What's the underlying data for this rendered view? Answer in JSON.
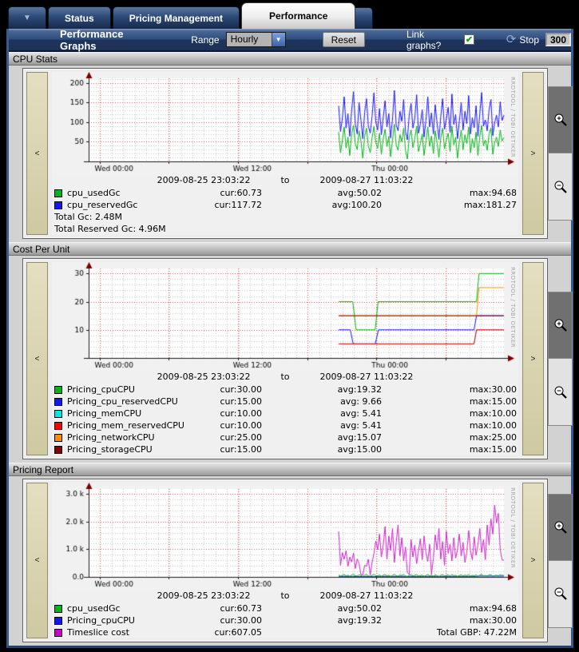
{
  "tabs": {
    "menu_icon": "▼",
    "items": [
      {
        "label": "Status"
      },
      {
        "label": "Pricing Management"
      },
      {
        "label": "Performance"
      }
    ],
    "active": "Performance"
  },
  "toolbar": {
    "title": "Performance Graphs",
    "range_label": "Range",
    "range_value": "Hourly",
    "reset_label": "Reset",
    "link_label": "Link graphs?",
    "link_checked": true,
    "stop_label": "Stop",
    "interval_value": "300"
  },
  "icons": {
    "nav_left": "<",
    "nav_right": ">",
    "check": "✔",
    "refresh": "⟳",
    "select_arrow": "▼"
  },
  "watermark": "RRDTOOL / TOBI OETIKER",
  "sections": [
    {
      "title": "CPU Stats",
      "date_from": "2009-08-25 23:03:22",
      "date_sep": "to",
      "date_to": "2009-08-27 11:03:22",
      "legend": [
        {
          "color": "#00b515",
          "name": "cpu_usedGc",
          "cur": "cur:60.73",
          "avg": "avg:50.02",
          "max": "max:94.68"
        },
        {
          "color": "#1414ff",
          "name": "cpu_reservedGc",
          "cur": "cur:117.72",
          "avg": "avg:100.20",
          "max": "max:181.27"
        }
      ],
      "footer": [
        "Total Gc:  2.48M",
        "Total Reserved Gc:  4.96M"
      ]
    },
    {
      "title": "Cost Per Unit",
      "date_from": "2009-08-25 23:03:22",
      "date_sep": "to",
      "date_to": "2009-08-27 11:03:22",
      "legend": [
        {
          "color": "#00b515",
          "name": "Pricing_cpuCPU",
          "cur": "cur:30.00",
          "avg": "avg:19.32",
          "max": "max:30.00"
        },
        {
          "color": "#1414ff",
          "name": "Pricing_cpu_reservedCPU",
          "cur": "cur:15.00",
          "avg": "avg: 9.66",
          "max": "max:15.00"
        },
        {
          "color": "#00e5e5",
          "name": "Pricing_memCPU",
          "cur": "cur:10.00",
          "avg": "avg: 5.41",
          "max": "max:10.00"
        },
        {
          "color": "#ff0000",
          "name": "Pricing_mem_reservedCPU",
          "cur": "cur:10.00",
          "avg": "avg: 5.41",
          "max": "max:10.00"
        },
        {
          "color": "#ff8c00",
          "name": "Pricing_networkCPU",
          "cur": "cur:25.00",
          "avg": "avg:15.07",
          "max": "max:25.00"
        },
        {
          "color": "#8b0000",
          "name": "Pricing_storageCPU",
          "cur": "cur:15.00",
          "avg": "avg:15.00",
          "max": "max:15.00"
        }
      ],
      "footer": []
    },
    {
      "title": "Pricing Report",
      "date_from": "2009-08-25 23:03:22",
      "date_sep": "to",
      "date_to": "2009-08-27 11:03:22",
      "legend": [
        {
          "color": "#00b515",
          "name": "cpu_usedGc",
          "cur": "cur:60.73",
          "avg": "avg:50.02",
          "max": "max:94.68"
        },
        {
          "color": "#1414ff",
          "name": "Pricing_cpuCPU",
          "cur": "cur:30.00",
          "avg": "avg:19.32",
          "max": "max:30.00"
        },
        {
          "color": "#cc00cc",
          "name": "Timeslice cost",
          "cur": "cur:607.05",
          "avg": "",
          "max": "Total GBP: 47.22M"
        }
      ],
      "footer": []
    }
  ],
  "chart_data": [
    {
      "type": "line",
      "title": "CPU Stats",
      "xlabel": "",
      "ylabel": "",
      "time_from": "2009-08-25 23:03:22",
      "time_to": "2009-08-27 11:03:22",
      "ylim": [
        0,
        212
      ],
      "y_minor": 10,
      "yticks": [
        {
          "v": 50,
          "label": "50"
        },
        {
          "v": 100,
          "label": "100"
        },
        {
          "v": 150,
          "label": "150"
        },
        {
          "v": 200,
          "label": "200"
        }
      ],
      "x_hours": 36,
      "x_major_t": [
        0.026,
        0.193,
        0.359,
        0.526,
        0.693,
        0.859
      ],
      "xticks": [
        {
          "t": 0.026,
          "label": "Wed 00:00"
        },
        {
          "t": 0.359,
          "label": "Wed 12:00"
        },
        {
          "t": 0.693,
          "label": "Thu 00:00"
        }
      ],
      "series": [
        {
          "name": "cpu_usedGc",
          "color": "#00b515",
          "t0": 0.602,
          "t1": 1.0,
          "values": [
            75,
            22,
            55,
            88,
            34,
            62,
            15,
            70,
            92,
            45,
            30,
            78,
            52,
            8,
            65,
            85,
            40,
            22,
            60,
            90,
            48,
            33,
            72,
            18,
            58,
            82,
            38,
            64,
            12,
            55,
            95,
            42,
            28,
            68,
            50,
            85,
            28,
            6,
            62,
            80,
            35,
            58,
            90,
            25,
            45,
            70,
            15,
            52,
            88,
            38,
            65,
            20,
            78,
            48,
            10,
            60,
            85,
            32,
            55,
            72,
            25,
            90,
            42,
            62,
            8,
            50,
            80,
            30,
            68,
            45,
            88,
            22,
            58,
            35,
            75,
            15,
            65,
            92,
            40,
            55,
            28,
            70,
            85,
            18,
            48,
            62,
            38,
            80,
            52,
            61
          ]
        },
        {
          "name": "cpu_reservedGc",
          "color": "#1414ff",
          "t0": 0.602,
          "t1": 1.0,
          "values": [
            142,
            76,
            110,
            165,
            85,
            122,
            64,
            130,
            178,
            95,
            70,
            150,
            105,
            58,
            125,
            160,
            90,
            72,
            115,
            175,
            100,
            80,
            135,
            68,
            112,
            155,
            88,
            122,
            60,
            108,
            181,
            92,
            78,
            128,
            102,
            158,
            76,
            55,
            118,
            148,
            85,
            110,
            170,
            72,
            95,
            132,
            62,
            105,
            165,
            88,
            124,
            70,
            145,
            98,
            56,
            115,
            160,
            82,
            108,
            138,
            74,
            172,
            94,
            120,
            58,
            102,
            150,
            80,
            128,
            96,
            168,
            70,
            112,
            86,
            142,
            64,
            122,
            176,
            90,
            106,
            78,
            132,
            158,
            66,
            98,
            118,
            88,
            152,
            104,
            118
          ]
        }
      ]
    },
    {
      "type": "line",
      "title": "Cost Per Unit",
      "xlabel": "",
      "ylabel": "",
      "time_from": "2009-08-25 23:03:22",
      "time_to": "2009-08-27 11:03:22",
      "ylim": [
        0,
        31.8
      ],
      "y_minor": 2,
      "yticks": [
        {
          "v": 10,
          "label": "10"
        },
        {
          "v": 20,
          "label": "20"
        },
        {
          "v": 30,
          "label": "30"
        }
      ],
      "x_hours": 36,
      "x_major_t": [
        0.026,
        0.193,
        0.359,
        0.526,
        0.693,
        0.859
      ],
      "xticks": [
        {
          "t": 0.026,
          "label": "Wed 00:00"
        },
        {
          "t": 0.359,
          "label": "Wed 12:00"
        },
        {
          "t": 0.693,
          "label": "Thu 00:00"
        }
      ],
      "series": [
        {
          "name": "Pricing_cpuCPU",
          "color": "#00b515",
          "points": [
            [
              0.602,
              20
            ],
            [
              0.636,
              20
            ],
            [
              0.644,
              10
            ],
            [
              0.69,
              10
            ],
            [
              0.697,
              20
            ],
            [
              0.934,
              20
            ],
            [
              0.94,
              30
            ],
            [
              1,
              30
            ]
          ]
        },
        {
          "name": "Pricing_cpu_reservedCPU",
          "color": "#1414ff",
          "points": [
            [
              0.602,
              10
            ],
            [
              0.63,
              10
            ],
            [
              0.637,
              5
            ],
            [
              0.69,
              5
            ],
            [
              0.698,
              10
            ],
            [
              0.928,
              10
            ],
            [
              0.934,
              15
            ],
            [
              1,
              15
            ]
          ]
        },
        {
          "name": "Pricing_memCPU",
          "color": "#00e5e5",
          "points": [
            [
              0.602,
              5
            ],
            [
              0.928,
              5
            ],
            [
              0.934,
              10
            ],
            [
              1,
              10
            ]
          ]
        },
        {
          "name": "Pricing_mem_reservedCPU",
          "color": "#ff0000",
          "points": [
            [
              0.602,
              5
            ],
            [
              0.928,
              5
            ],
            [
              0.934,
              10
            ],
            [
              1,
              10
            ]
          ]
        },
        {
          "name": "Pricing_networkCPU",
          "color": "#ff8c00",
          "points": [
            [
              0.602,
              15
            ],
            [
              0.934,
              15
            ],
            [
              0.94,
              25
            ],
            [
              1,
              25
            ]
          ]
        },
        {
          "name": "Pricing_storageCPU",
          "color": "#8b0000",
          "points": [
            [
              0.602,
              15
            ],
            [
              1,
              15
            ]
          ]
        }
      ]
    },
    {
      "type": "line",
      "title": "Pricing Report",
      "xlabel": "",
      "ylabel": "",
      "time_from": "2009-08-25 23:03:22",
      "time_to": "2009-08-27 11:03:22",
      "ylim": [
        0,
        3180
      ],
      "y_minor": 200,
      "yticks": [
        {
          "v": 0,
          "label": "0.0"
        },
        {
          "v": 1000,
          "label": "1.0 k"
        },
        {
          "v": 2000,
          "label": "2.0 k"
        },
        {
          "v": 3000,
          "label": "3.0 k"
        }
      ],
      "x_hours": 36,
      "x_major_t": [
        0.026,
        0.193,
        0.359,
        0.526,
        0.693,
        0.859
      ],
      "xticks": [
        {
          "t": 0.026,
          "label": "Wed 00:00"
        },
        {
          "t": 0.359,
          "label": "Wed 12:00"
        },
        {
          "t": 0.693,
          "label": "Thu 00:00"
        }
      ],
      "series": [
        {
          "name": "Pricing_cpuCPU",
          "color": "#1414ff",
          "points": [
            [
              0.602,
              20
            ],
            [
              0.636,
              20
            ],
            [
              0.644,
              10
            ],
            [
              0.69,
              10
            ],
            [
              0.697,
              20
            ],
            [
              0.934,
              20
            ],
            [
              0.94,
              30
            ],
            [
              1,
              30
            ]
          ]
        },
        {
          "name": "cpu_usedGc",
          "color": "#00b515",
          "t0": 0.602,
          "t1": 1.0,
          "values": [
            75,
            22,
            55,
            88,
            34,
            62,
            15,
            70,
            92,
            45,
            30,
            78,
            52,
            8,
            65,
            85,
            40,
            22,
            60,
            90,
            48,
            33,
            72,
            18,
            58,
            82,
            38,
            64,
            12,
            55,
            95,
            42,
            28,
            68,
            50,
            85,
            28,
            6,
            62,
            80,
            35,
            58,
            90,
            25,
            45,
            70,
            15,
            52,
            88,
            38,
            65,
            20,
            78,
            48,
            10,
            60,
            85,
            32,
            55,
            72,
            25,
            90,
            42,
            62,
            8,
            50,
            80,
            30,
            68,
            45,
            88,
            22,
            58,
            35,
            75,
            15,
            65,
            92,
            40,
            55,
            28,
            70,
            85,
            18,
            48,
            62,
            38,
            80,
            52,
            61
          ]
        },
        {
          "name": "Timeslice cost",
          "color": "#cc22cc",
          "t0": 0.602,
          "t1": 1.0,
          "values": [
            1650,
            420,
            880,
            640,
            950,
            380,
            720,
            540,
            860,
            300,
            650,
            480,
            90,
            60,
            420,
            380,
            640,
            70,
            520,
            840,
            1300,
            980,
            1550,
            720,
            1150,
            1820,
            640,
            1480,
            950,
            1750,
            520,
            1250,
            1880,
            760,
            1420,
            580,
            1080,
            150,
            90,
            1350,
            720,
            1150,
            480,
            950,
            1380,
            620,
            1480,
            880,
            560,
            1180,
            90,
            680,
            1520,
            980,
            1750,
            640,
            1280,
            420,
            1650,
            850,
            1180,
            580,
            1420,
            680,
            980,
            1550,
            750,
            1250,
            520,
            880,
            1680,
            950,
            620,
            1450,
            780,
            1150,
            1750,
            880,
            1350,
            620,
            1880,
            1150,
            2100,
            1550,
            2600,
            1950,
            2300,
            980,
            620,
            607
          ]
        }
      ]
    }
  ]
}
